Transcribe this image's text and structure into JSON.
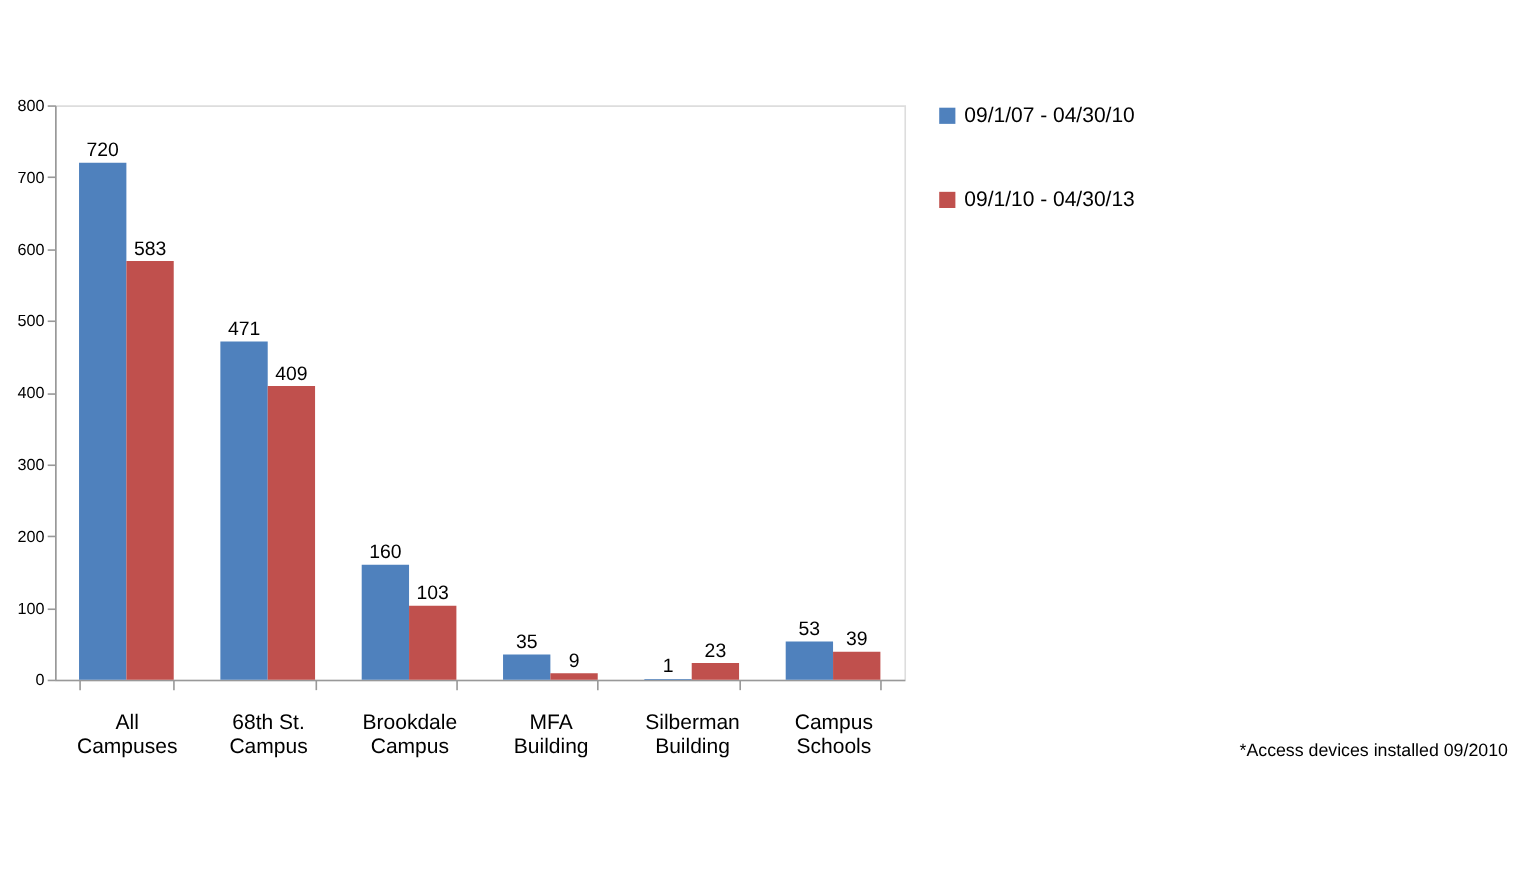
{
  "chart_data": {
    "type": "bar",
    "categories": [
      "All Campuses",
      "68th St. Campus",
      "Brookdale Campus",
      "MFA Building",
      "Silberman Building",
      "Campus Schools"
    ],
    "series": [
      {
        "name": "09/1/07 - 04/30/10",
        "color": "#4f81bd",
        "values": [
          720,
          471,
          160,
          35,
          1,
          53
        ]
      },
      {
        "name": "09/1/10 - 04/30/13",
        "color": "#c0504d",
        "values": [
          583,
          409,
          103,
          9,
          23,
          39
        ]
      }
    ],
    "ylim": [
      0,
      800
    ],
    "yticks": [
      0,
      100,
      200,
      300,
      400,
      500,
      600,
      700,
      800
    ],
    "grid": false,
    "legend": "right",
    "data_labels": true,
    "annotations": [
      "*Access devices installed 09/2010"
    ]
  }
}
